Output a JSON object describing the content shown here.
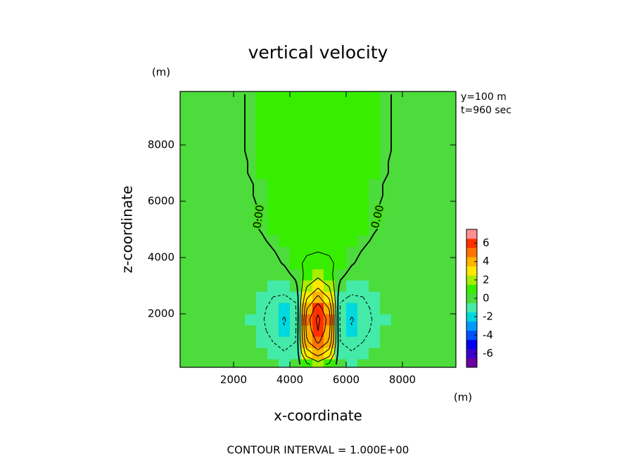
{
  "chart_data": {
    "type": "contour",
    "title": "vertical velocity",
    "x_label": "x-coordinate",
    "y_label": "z-coordinate",
    "x_unit": "(m)",
    "y_unit": "(m)",
    "annotations": [
      "y=100 m",
      "t=960 sec"
    ],
    "contour_text": "CONTOUR INTERVAL = 1.000E+00",
    "contour_interval": 1,
    "contour_labels": [
      "0.00",
      "0.00"
    ],
    "xlim": [
      100,
      9900
    ],
    "ylim": [
      100,
      9900
    ],
    "xticks": [
      2000,
      4000,
      6000,
      8000
    ],
    "yticks": [
      2000,
      4000,
      6000,
      8000
    ],
    "x": [
      200,
      600,
      1000,
      1400,
      1800,
      2200,
      2600,
      3000,
      3400,
      3800,
      4200,
      4600,
      5000,
      5400,
      5800,
      6200,
      6600,
      7000,
      7400,
      7800,
      8200,
      8600,
      9000,
      9400,
      9800
    ],
    "y": [
      200,
      600,
      1000,
      1400,
      1800,
      2200,
      2600,
      3000,
      3400,
      3800,
      4200,
      4600,
      5000,
      5400,
      5800,
      6200,
      6600,
      7000,
      7400,
      7800,
      8200,
      8600,
      9000,
      9400,
      9800
    ],
    "z": [
      [
        -0.3,
        -0.3,
        -0.3,
        -0.3,
        -0.3,
        -0.3,
        -0.3,
        -0.3,
        -0.3,
        -0.6,
        -0.5,
        0.8,
        1.5,
        0.8,
        -0.5,
        -0.6,
        -0.3,
        -0.3,
        -0.3,
        -0.3,
        -0.3,
        -0.3,
        -0.3,
        -0.3,
        -0.3
      ],
      [
        -0.3,
        -0.3,
        -0.3,
        -0.3,
        -0.3,
        -0.3,
        -0.3,
        -0.3,
        -0.6,
        -0.9,
        -0.8,
        2.5,
        3.5,
        2.5,
        -0.8,
        -0.9,
        -0.6,
        -0.3,
        -0.3,
        -0.3,
        -0.3,
        -0.3,
        -0.3,
        -0.3,
        -0.3
      ],
      [
        -0.3,
        -0.3,
        -0.3,
        -0.3,
        -0.3,
        -0.3,
        -0.4,
        -0.6,
        -1.0,
        -1.4,
        -1.0,
        3.8,
        5.2,
        3.8,
        -1.0,
        -1.4,
        -1.0,
        -0.6,
        -0.4,
        -0.3,
        -0.3,
        -0.3,
        -0.3,
        -0.3,
        -0.3
      ],
      [
        -0.3,
        -0.3,
        -0.3,
        -0.3,
        -0.3,
        -0.3,
        -0.5,
        -0.8,
        -1.3,
        -1.9,
        -1.2,
        4.3,
        6,
        4.3,
        -1.2,
        -1.9,
        -1.3,
        -0.8,
        -0.5,
        -0.3,
        -0.3,
        -0.3,
        -0.3,
        -0.3,
        -0.3
      ],
      [
        -0.3,
        -0.3,
        -0.3,
        -0.3,
        -0.3,
        -0.4,
        -0.6,
        -0.9,
        -1.4,
        -2.1,
        -1.3,
        4.5,
        6.3,
        4.5,
        -1.3,
        -2.1,
        -1.4,
        -0.9,
        -0.6,
        -0.4,
        -0.3,
        -0.3,
        -0.3,
        -0.3,
        -0.3
      ],
      [
        -0.3,
        -0.3,
        -0.3,
        -0.3,
        -0.3,
        -0.3,
        -0.5,
        -0.8,
        -1.3,
        -1.7,
        -1.2,
        3.9,
        5.6,
        3.9,
        -1.2,
        -1.7,
        -1.3,
        -0.8,
        -0.5,
        -0.3,
        -0.3,
        -0.3,
        -0.3,
        -0.3,
        -0.3
      ],
      [
        -0.3,
        -0.3,
        -0.3,
        -0.3,
        -0.3,
        -0.3,
        -0.4,
        -0.6,
        -1.0,
        -1.1,
        -0.8,
        2.8,
        4.2,
        2.8,
        -0.8,
        -1.1,
        -1.0,
        -0.6,
        -0.4,
        -0.3,
        -0.3,
        -0.3,
        -0.3,
        -0.3,
        -0.3
      ],
      [
        -0.3,
        -0.3,
        -0.3,
        -0.3,
        -0.3,
        -0.3,
        -0.3,
        -0.5,
        -0.6,
        -0.6,
        -0.3,
        1.9,
        2.7,
        1.9,
        -0.3,
        -0.6,
        -0.6,
        -0.5,
        -0.3,
        -0.3,
        -0.3,
        -0.3,
        -0.3,
        -0.3,
        -0.3
      ],
      [
        -0.3,
        -0.3,
        -0.3,
        -0.3,
        -0.3,
        -0.3,
        -0.3,
        -0.3,
        -0.4,
        -0.4,
        0.3,
        1.3,
        1.7,
        1.3,
        0.3,
        -0.4,
        -0.4,
        -0.3,
        -0.3,
        -0.3,
        -0.3,
        -0.3,
        -0.3,
        -0.3,
        -0.3
      ],
      [
        -0.3,
        -0.3,
        -0.3,
        -0.3,
        -0.3,
        -0.3,
        -0.3,
        -0.3,
        -0.3,
        0.1,
        0.7,
        1.2,
        1.4,
        1.2,
        0.7,
        0.1,
        -0.3,
        -0.3,
        -0.3,
        -0.3,
        -0.3,
        -0.3,
        -0.3,
        -0.3,
        -0.3
      ],
      [
        -0.3,
        -0.3,
        -0.3,
        -0.3,
        -0.3,
        -0.3,
        -0.3,
        -0.3,
        -0.1,
        0.4,
        0.7,
        0.9,
        1.0,
        0.9,
        0.7,
        0.4,
        -0.1,
        -0.3,
        -0.3,
        -0.3,
        -0.3,
        -0.3,
        -0.3,
        -0.3,
        -0.3
      ],
      [
        -0.3,
        -0.3,
        -0.3,
        -0.3,
        -0.3,
        -0.3,
        -0.3,
        -0.2,
        0.3,
        0.5,
        0.7,
        0.7,
        0.7,
        0.7,
        0.7,
        0.5,
        0.3,
        -0.2,
        -0.3,
        -0.3,
        -0.3,
        -0.3,
        -0.3,
        -0.3,
        -0.3
      ],
      [
        -0.3,
        -0.3,
        -0.3,
        -0.3,
        -0.3,
        -0.3,
        -0.3,
        0.1,
        0.6,
        0.6,
        0.6,
        0.6,
        0.6,
        0.6,
        0.6,
        0.6,
        0.6,
        0.1,
        -0.3,
        -0.3,
        -0.3,
        -0.3,
        -0.3,
        -0.3,
        -0.3
      ],
      [
        -0.3,
        -0.3,
        -0.3,
        -0.3,
        -0.3,
        -0.3,
        -0.3,
        0.2,
        0.6,
        0.6,
        0.6,
        0.6,
        0.6,
        0.6,
        0.6,
        0.6,
        0.6,
        0.2,
        -0.3,
        -0.3,
        -0.3,
        -0.3,
        -0.3,
        -0.3,
        -0.3
      ],
      [
        -0.3,
        -0.3,
        -0.3,
        -0.3,
        -0.3,
        -0.3,
        -0.3,
        0.2,
        0.6,
        0.6,
        0.6,
        0.6,
        0.6,
        0.6,
        0.6,
        0.6,
        0.6,
        0.2,
        -0.3,
        -0.3,
        -0.3,
        -0.3,
        -0.3,
        -0.3,
        -0.3
      ],
      [
        -0.3,
        -0.3,
        -0.3,
        -0.3,
        -0.3,
        -0.3,
        -0.1,
        0.3,
        0.6,
        0.6,
        0.6,
        0.6,
        0.6,
        0.6,
        0.6,
        0.6,
        0.6,
        0.3,
        -0.1,
        -0.3,
        -0.3,
        -0.3,
        -0.3,
        -0.3,
        -0.3
      ],
      [
        -0.3,
        -0.3,
        -0.3,
        -0.3,
        -0.3,
        -0.3,
        -0.1,
        0.3,
        0.6,
        0.6,
        0.6,
        0.6,
        0.6,
        0.6,
        0.6,
        0.6,
        0.6,
        0.3,
        -0.1,
        -0.3,
        -0.3,
        -0.3,
        -0.3,
        -0.3,
        -0.3
      ],
      [
        -0.3,
        -0.3,
        -0.3,
        -0.3,
        -0.3,
        -0.3,
        0.1,
        0.6,
        0.6,
        0.6,
        0.6,
        0.6,
        0.6,
        0.6,
        0.6,
        0.6,
        0.6,
        0.6,
        0.1,
        -0.3,
        -0.3,
        -0.3,
        -0.3,
        -0.3,
        -0.3
      ],
      [
        -0.3,
        -0.3,
        -0.3,
        -0.3,
        -0.3,
        -0.3,
        0.1,
        0.6,
        0.6,
        0.6,
        0.6,
        0.6,
        0.6,
        0.6,
        0.6,
        0.6,
        0.6,
        0.6,
        0.1,
        -0.3,
        -0.3,
        -0.3,
        -0.3,
        -0.3,
        -0.3
      ],
      [
        -0.3,
        -0.3,
        -0.3,
        -0.3,
        -0.3,
        -0.2,
        0.2,
        0.6,
        0.6,
        0.6,
        0.6,
        0.6,
        0.6,
        0.6,
        0.6,
        0.6,
        0.6,
        0.6,
        0.2,
        -0.2,
        -0.3,
        -0.3,
        -0.3,
        -0.3,
        -0.3
      ],
      [
        -0.3,
        -0.3,
        -0.3,
        -0.3,
        -0.3,
        -0.2,
        0.2,
        0.6,
        0.6,
        0.6,
        0.6,
        0.6,
        0.6,
        0.6,
        0.6,
        0.6,
        0.6,
        0.6,
        0.2,
        -0.2,
        -0.3,
        -0.3,
        -0.3,
        -0.3,
        -0.3
      ],
      [
        -0.3,
        -0.3,
        -0.3,
        -0.3,
        -0.3,
        -0.2,
        0.2,
        0.6,
        0.6,
        0.6,
        0.6,
        0.6,
        0.6,
        0.6,
        0.6,
        0.6,
        0.6,
        0.6,
        0.2,
        -0.2,
        -0.3,
        -0.3,
        -0.3,
        -0.3,
        -0.3
      ],
      [
        -0.3,
        -0.3,
        -0.3,
        -0.3,
        -0.3,
        -0.2,
        0.2,
        0.6,
        0.6,
        0.6,
        0.6,
        0.6,
        0.6,
        0.6,
        0.6,
        0.6,
        0.6,
        0.6,
        0.2,
        -0.2,
        -0.3,
        -0.3,
        -0.3,
        -0.3,
        -0.3
      ],
      [
        -0.3,
        -0.3,
        -0.3,
        -0.3,
        -0.3,
        -0.2,
        0.2,
        0.6,
        0.6,
        0.6,
        0.6,
        0.6,
        0.6,
        0.6,
        0.6,
        0.6,
        0.6,
        0.6,
        0.2,
        -0.2,
        -0.3,
        -0.3,
        -0.3,
        -0.3,
        -0.3
      ],
      [
        -0.3,
        -0.3,
        -0.3,
        -0.3,
        -0.3,
        -0.2,
        0.2,
        0.6,
        0.6,
        0.6,
        0.6,
        0.6,
        0.6,
        0.6,
        0.6,
        0.6,
        0.6,
        0.6,
        0.2,
        -0.2,
        -0.3,
        -0.3,
        -0.3,
        -0.3,
        -0.3
      ]
    ],
    "colorbar": {
      "clim": [
        -7.5,
        7.5
      ],
      "ticks": [
        -6,
        -4,
        -2,
        0,
        2,
        4,
        6
      ],
      "colors": [
        "#6a00a0",
        "#3a00cc",
        "#0000ee",
        "#0050ff",
        "#0099ff",
        "#00d8e0",
        "#44eaa8",
        "#4cdc3c",
        "#38ee00",
        "#a8ee00",
        "#ffe800",
        "#ffb400",
        "#ff7200",
        "#ff3000",
        "#ff9090"
      ]
    }
  }
}
